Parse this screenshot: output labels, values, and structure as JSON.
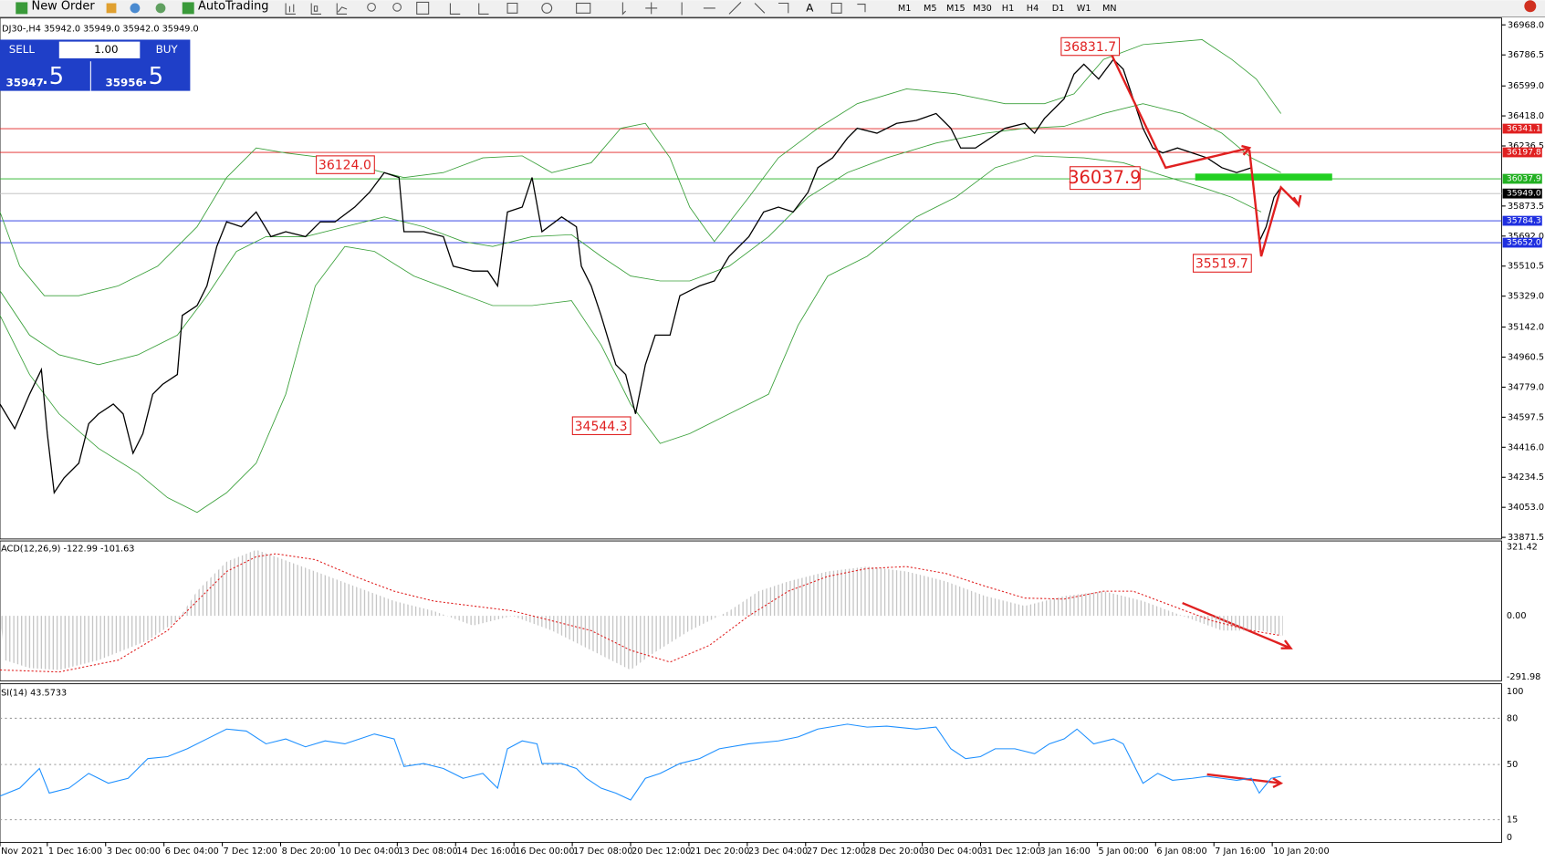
{
  "toolbar": {
    "new_order": "New Order",
    "autotrading": "AutoTrading",
    "timeframes": [
      "M1",
      "M5",
      "M15",
      "M30",
      "H1",
      "H4",
      "D1",
      "W1",
      "MN"
    ]
  },
  "chart": {
    "header": "DJ30-,H4 35942.0 35949.0 35942.0 35949.0"
  },
  "trade_panel": {
    "sell": "SELL",
    "buy": "BUY",
    "lots": "1.00",
    "sell_price_main": "35947",
    "sell_price_big": ".5",
    "buy_price_main": "35956",
    "buy_price_big": ".5"
  },
  "price_axis": [
    "36968.0",
    "36786.5",
    "36599.0",
    "36418.0",
    "36236.5",
    "35873.5",
    "35692.0",
    "35510.5",
    "35329.0",
    "35142.0",
    "34960.5",
    "34779.0",
    "34597.5",
    "34416.0",
    "34234.5",
    "34053.0",
    "33871.5"
  ],
  "price_tags": [
    {
      "label": "36341.1",
      "color": "#e02020"
    },
    {
      "label": "36197.8",
      "color": "#e02020"
    },
    {
      "label": "36037.9",
      "color": "#22b022"
    },
    {
      "label": "35949.0",
      "color": "#000000"
    },
    {
      "label": "35784.3",
      "color": "#1f2fe0"
    },
    {
      "label": "35652.0",
      "color": "#1f2fe0"
    }
  ],
  "annotations": [
    "36831.7",
    "36124.0",
    "36037.9",
    "34544.3",
    "35519.7"
  ],
  "macd": {
    "label": "ACD(12,26,9) -122.99 -101.63",
    "axis": [
      "321.42",
      "0.00",
      "-291.98"
    ]
  },
  "rsi": {
    "label": "SI(14) 43.5733",
    "axis": [
      "100",
      "80",
      "50",
      "15",
      "0"
    ]
  },
  "time_axis": [
    "Nov 2021",
    "1 Dec 16:00",
    "3 Dec 00:00",
    "6 Dec 04:00",
    "7 Dec 12:00",
    "8 Dec 20:00",
    "10 Dec 04:00",
    "13 Dec 08:00",
    "14 Dec 16:00",
    "16 Dec 00:00",
    "17 Dec 08:00",
    "20 Dec 12:00",
    "21 Dec 20:00",
    "23 Dec 04:00",
    "27 Dec 12:00",
    "28 Dec 20:00",
    "30 Dec 04:00",
    "31 Dec 12:00",
    "3 Jan 16:00",
    "5 Jan 00:00",
    "6 Jan 08:00",
    "7 Jan 16:00",
    "10 Jan 20:00"
  ]
}
